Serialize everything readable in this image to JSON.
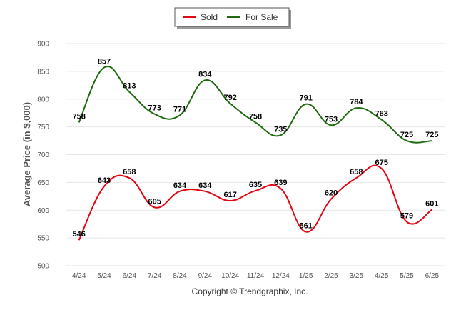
{
  "chart_data": {
    "type": "line",
    "ylabel": "Average Price (in $,000)",
    "credit": "Copyright © Trendgraphix, Inc.",
    "categories": [
      "4/24",
      "5/24",
      "6/24",
      "7/24",
      "8/24",
      "9/24",
      "10/24",
      "11/24",
      "12/24",
      "1/25",
      "2/25",
      "3/25",
      "4/25",
      "5/25",
      "6/25"
    ],
    "ylim": [
      500,
      900
    ],
    "yticks": [
      500,
      550,
      600,
      650,
      700,
      750,
      800,
      850,
      900
    ],
    "grid": true,
    "legend_position": "top-center",
    "series": [
      {
        "name": "Sold",
        "color": "#e30613",
        "values": [
          546,
          643,
          658,
          605,
          634,
          634,
          617,
          635,
          639,
          561,
          620,
          658,
          675,
          579,
          601
        ]
      },
      {
        "name": "For Sale",
        "color": "#1e6b10",
        "values": [
          758,
          857,
          813,
          773,
          771,
          834,
          792,
          758,
          735,
          791,
          753,
          784,
          763,
          725,
          725
        ]
      }
    ]
  }
}
